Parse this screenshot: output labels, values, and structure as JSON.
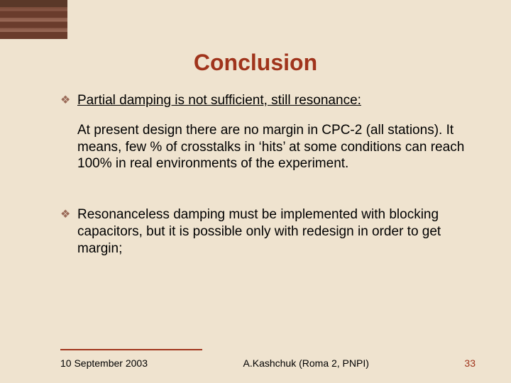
{
  "colors": {
    "background": "#efe3cf",
    "accent": "#a0341c",
    "corner_dark": "#5a3828",
    "corner_light": "#9a6a58",
    "bullet": "#9a6a58",
    "text": "#000000"
  },
  "typography": {
    "title_fontsize": 32,
    "body_fontsize": 19,
    "footer_fontsize": 14,
    "title_family": "Comic Sans MS",
    "body_family": "Comic Sans MS",
    "footer_family": "Arial"
  },
  "title": "Conclusion",
  "bullets": [
    {
      "heading": "Partial damping is not sufficient, still resonance:",
      "heading_underlined": true,
      "paragraph": "At present design there are no margin in CPC-2 (all stations). It means, few % of crosstalks in ‘hits’ at some conditions can reach 100% in real environments of the experiment."
    },
    {
      "heading": "Resonanceless damping must be implemented with blocking capacitors, but it is possible only with redesign in order to get margin;",
      "heading_underlined": false,
      "paragraph": ""
    }
  ],
  "footer": {
    "date": "10 September 2003",
    "author": "A.Kashchuk (Roma 2, PNPI)",
    "page": "33"
  }
}
